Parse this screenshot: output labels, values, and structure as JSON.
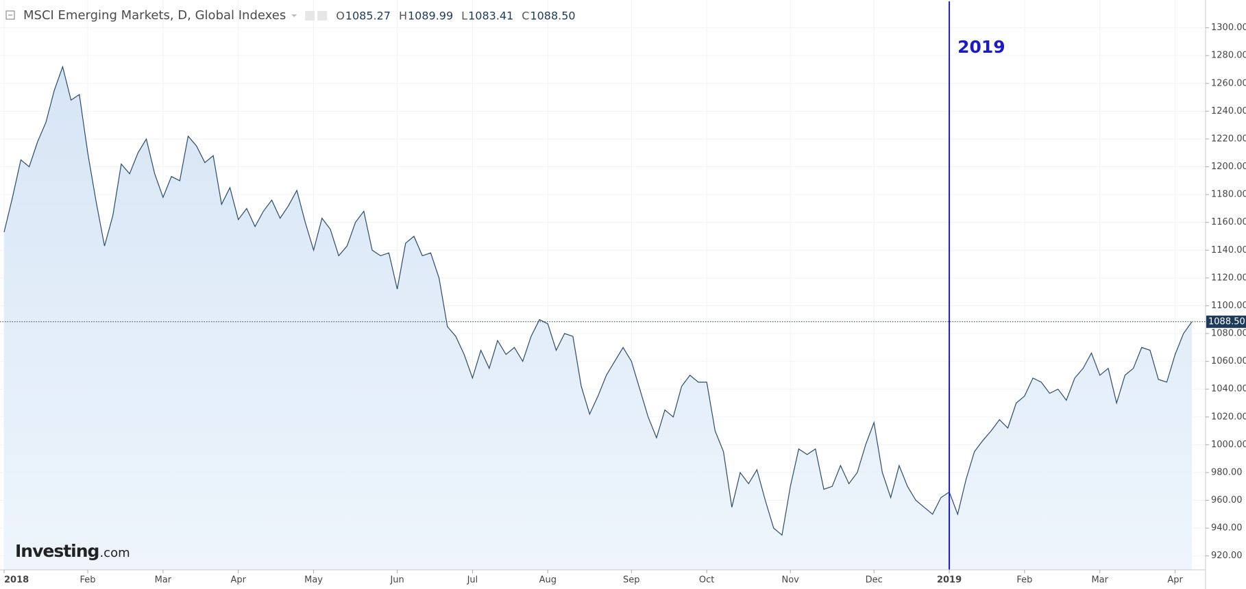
{
  "chart_data": {
    "type": "area",
    "title": "MSCI Emerging Markets, D, Global Indexes",
    "ohlc": [
      {
        "key": "O",
        "value": 1085.27,
        "label": "1085.27"
      },
      {
        "key": "H",
        "value": 1089.99,
        "label": "1089.99"
      },
      {
        "key": "L",
        "value": 1083.41,
        "label": "1083.41"
      },
      {
        "key": "C",
        "value": 1088.5,
        "label": "1088.50"
      }
    ],
    "last_price": {
      "value": 1088.5,
      "label": "1088.50"
    },
    "watermark": [
      "Investing",
      ".com"
    ],
    "annotations": [
      {
        "text": "2019",
        "color": "#1a1acc"
      }
    ],
    "color": "#2b4a69",
    "fill": "#dbe8f6",
    "grid": true,
    "categories": [
      "2018",
      null,
      null,
      null,
      null,
      null,
      null,
      null,
      null,
      null,
      "Feb",
      null,
      null,
      null,
      null,
      null,
      null,
      null,
      null,
      "Mar",
      null,
      null,
      null,
      null,
      null,
      null,
      null,
      null,
      "Apr",
      null,
      null,
      null,
      null,
      null,
      null,
      null,
      null,
      "May",
      null,
      null,
      null,
      null,
      null,
      null,
      null,
      null,
      null,
      "Jun",
      null,
      null,
      null,
      null,
      null,
      null,
      null,
      null,
      "Jul",
      null,
      null,
      null,
      null,
      null,
      null,
      null,
      null,
      "Aug",
      null,
      null,
      null,
      null,
      null,
      null,
      null,
      null,
      null,
      "Sep",
      null,
      null,
      null,
      null,
      null,
      null,
      null,
      null,
      "Oct",
      null,
      null,
      null,
      null,
      null,
      null,
      null,
      null,
      null,
      "Nov",
      null,
      null,
      null,
      null,
      null,
      null,
      null,
      null,
      null,
      "Dec",
      null,
      null,
      null,
      null,
      null,
      null,
      null,
      null,
      "2019",
      null,
      null,
      null,
      null,
      null,
      null,
      null,
      null,
      "Feb",
      null,
      null,
      null,
      null,
      null,
      null,
      null,
      null,
      "Mar",
      null,
      null,
      null,
      null,
      null,
      null,
      null,
      null,
      "Apr",
      null,
      null
    ],
    "values": [
      1153,
      1178,
      1205,
      1200,
      1218,
      1232,
      1255,
      1272,
      1248,
      1252,
      1210,
      1175,
      1143,
      1165,
      1202,
      1195,
      1210,
      1220,
      1195,
      1178,
      1193,
      1190,
      1222,
      1215,
      1203,
      1208,
      1173,
      1185,
      1162,
      1170,
      1157,
      1168,
      1176,
      1163,
      1172,
      1183,
      1160,
      1140,
      1163,
      1155,
      1136,
      1143,
      1160,
      1168,
      1140,
      1136,
      1138,
      1112,
      1145,
      1150,
      1136,
      1138,
      1120,
      1085,
      1078,
      1065,
      1048,
      1068,
      1055,
      1075,
      1065,
      1070,
      1060,
      1078,
      1090,
      1087,
      1068,
      1080,
      1078,
      1042,
      1022,
      1035,
      1050,
      1060,
      1070,
      1060,
      1040,
      1020,
      1005,
      1025,
      1020,
      1042,
      1050,
      1045,
      1045,
      1010,
      995,
      955,
      980,
      972,
      982,
      960,
      940,
      935,
      970,
      997,
      993,
      997,
      968,
      970,
      985,
      972,
      980,
      1000,
      1016,
      980,
      962,
      985,
      970,
      960,
      955,
      950,
      962,
      966,
      950,
      975,
      995,
      1003,
      1010,
      1018,
      1012,
      1030,
      1035,
      1048,
      1045,
      1037,
      1040,
      1032,
      1048,
      1055,
      1066,
      1050,
      1055,
      1030,
      1050,
      1055,
      1070,
      1068,
      1047,
      1045,
      1065,
      1080,
      1088.5
    ],
    "ylim": [
      910,
      1320
    ],
    "yticks": [
      {
        "value": 920,
        "label": "920.00"
      },
      {
        "value": 940,
        "label": "940.00"
      },
      {
        "value": 960,
        "label": "960.00"
      },
      {
        "value": 980,
        "label": "980.00"
      },
      {
        "value": 1000,
        "label": "1000.00"
      },
      {
        "value": 1020,
        "label": "1020.00"
      },
      {
        "value": 1040,
        "label": "1040.00"
      },
      {
        "value": 1060,
        "label": "1060.00"
      },
      {
        "value": 1080,
        "label": "1080.00"
      },
      {
        "value": 1100,
        "label": "1100.00"
      },
      {
        "value": 1120,
        "label": "1120.00"
      },
      {
        "value": 1140,
        "label": "1140.00"
      },
      {
        "value": 1160,
        "label": "1160.00"
      },
      {
        "value": 1180,
        "label": "1180.00"
      },
      {
        "value": 1200,
        "label": "1200.00"
      },
      {
        "value": 1220,
        "label": "1220.00"
      },
      {
        "value": 1240,
        "label": "1240.00"
      },
      {
        "value": 1260,
        "label": "1260.00"
      },
      {
        "value": 1280,
        "label": "1280.00"
      },
      {
        "value": 1300,
        "label": "1300.00"
      }
    ]
  }
}
